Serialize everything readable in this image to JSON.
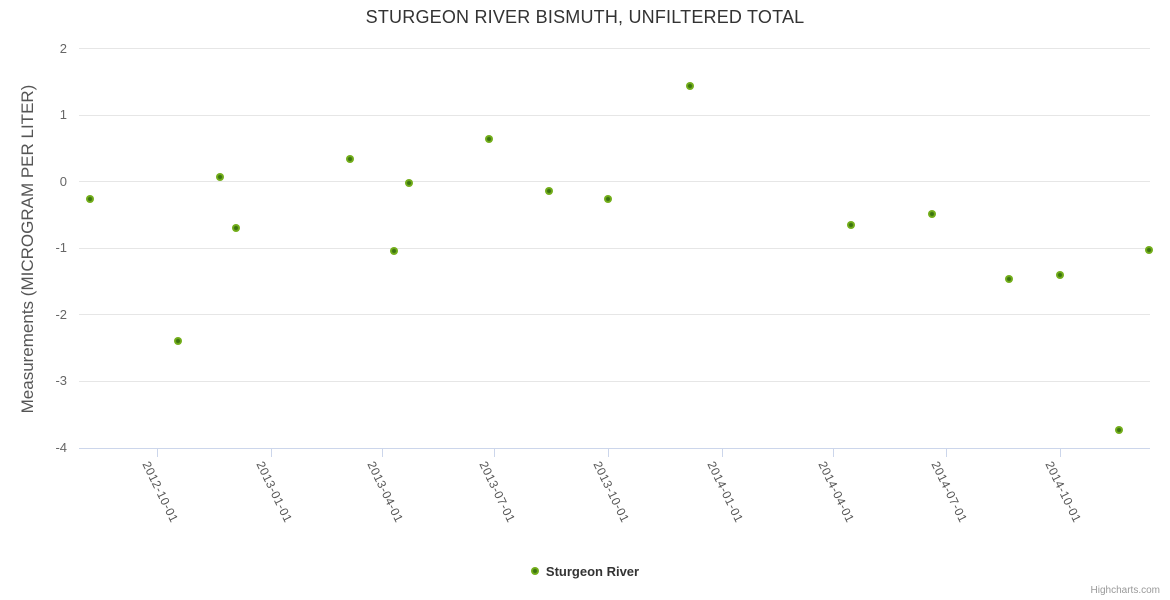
{
  "chart": {
    "title": "STURGEON RIVER BISMUTH, UNFILTERED TOTAL",
    "credits_label": "Highcharts.com"
  },
  "colors": {
    "marker_green": "#74af1b",
    "marker_core_green": "#3c7410",
    "gridline": "#e6e6e6",
    "axis_line": "#ccd6eb",
    "title_text": "#333333",
    "axis_label_text": "#666666"
  },
  "chart_data": {
    "type": "scatter",
    "title": "STURGEON RIVER BISMUTH, UNFILTERED TOTAL",
    "xlabel": "",
    "ylabel": "Measurements (MICROGRAM PER LITER)",
    "ylim": [
      -4,
      2
    ],
    "xlim": [
      "2012-07-31",
      "2014-12-14"
    ],
    "yticks": [
      2,
      1,
      0,
      -1,
      -2,
      -3,
      -4
    ],
    "xticks": [
      "2012-10-01",
      "2013-01-01",
      "2013-04-01",
      "2013-07-01",
      "2013-10-01",
      "2014-01-01",
      "2014-04-01",
      "2014-07-01",
      "2014-10-01"
    ],
    "grid": "horizontal",
    "legend_position": "bottom-center",
    "series": [
      {
        "name": "Sturgeon River",
        "color": "#74af1b",
        "points": [
          {
            "date": "2012-08-08",
            "value": -0.27
          },
          {
            "date": "2012-10-18",
            "value": -2.4
          },
          {
            "date": "2012-11-21",
            "value": 0.06
          },
          {
            "date": "2012-12-04",
            "value": -0.7
          },
          {
            "date": "2013-03-06",
            "value": 0.34
          },
          {
            "date": "2013-04-11",
            "value": -1.05
          },
          {
            "date": "2013-04-23",
            "value": -0.03
          },
          {
            "date": "2013-06-27",
            "value": 0.64
          },
          {
            "date": "2013-08-14",
            "value": -0.15
          },
          {
            "date": "2013-10-01",
            "value": -0.27
          },
          {
            "date": "2013-12-06",
            "value": 1.44
          },
          {
            "date": "2014-04-15",
            "value": -0.66
          },
          {
            "date": "2014-06-20",
            "value": -0.49
          },
          {
            "date": "2014-08-21",
            "value": -1.46
          },
          {
            "date": "2014-10-01",
            "value": -1.4
          },
          {
            "date": "2014-11-18",
            "value": -3.73
          },
          {
            "date": "2014-12-12",
            "value": -1.03
          }
        ]
      }
    ]
  }
}
